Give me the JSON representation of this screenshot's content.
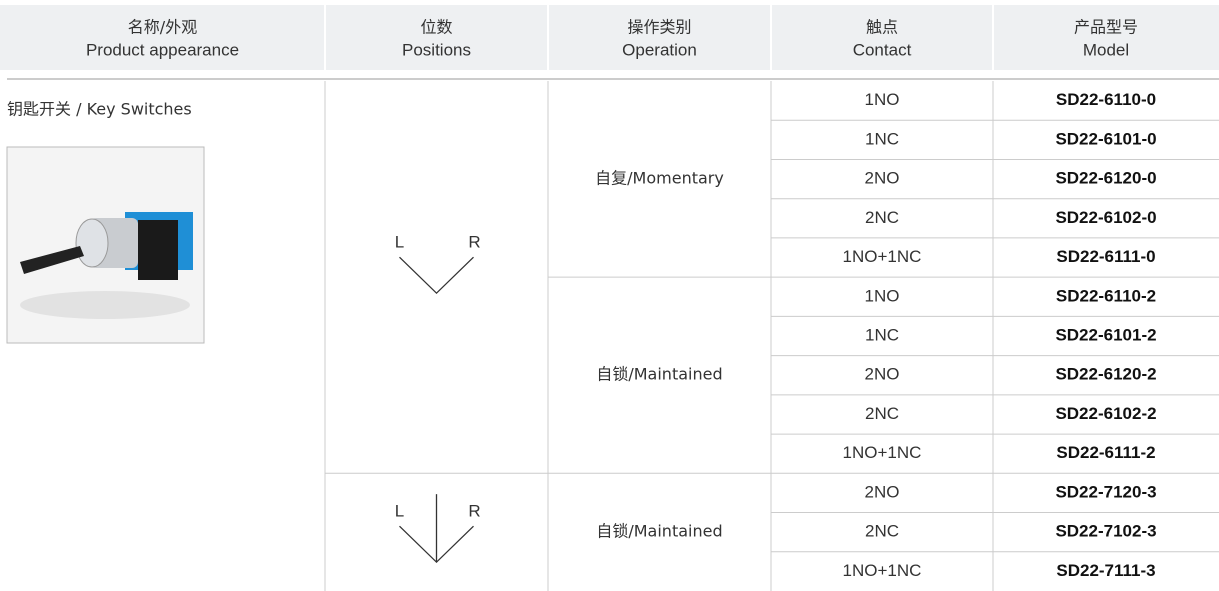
{
  "header": [
    {
      "zh": "名称/外观",
      "en": "Product appearance"
    },
    {
      "zh": "位数",
      "en": "Positions"
    },
    {
      "zh": "操作类别",
      "en": "Operation"
    },
    {
      "zh": "触点",
      "en": "Contact"
    },
    {
      "zh": "产品型号",
      "en": "Model"
    }
  ],
  "product": {
    "name": "钥匙开关 / Key Switches"
  },
  "groups": [
    {
      "position": {
        "left": "L",
        "right": "R"
      },
      "operations": [
        {
          "name": "自复/Momentary",
          "rows": [
            {
              "contact": "1NO",
              "model": "SD22-6110-0"
            },
            {
              "contact": "1NC",
              "model": "SD22-6101-0"
            },
            {
              "contact": "2NO",
              "model": "SD22-6120-0"
            },
            {
              "contact": "2NC",
              "model": "SD22-6102-0"
            },
            {
              "contact": "1NO+1NC",
              "model": "SD22-6111-0"
            }
          ]
        },
        {
          "name": "自锁/Maintained",
          "rows": [
            {
              "contact": "1NO",
              "model": "SD22-6110-2"
            },
            {
              "contact": "1NC",
              "model": "SD22-6101-2"
            },
            {
              "contact": "2NO",
              "model": "SD22-6120-2"
            },
            {
              "contact": "2NC",
              "model": "SD22-6102-2"
            },
            {
              "contact": "1NO+1NC",
              "model": "SD22-6111-2"
            }
          ]
        }
      ]
    },
    {
      "position": {
        "left": "L",
        "right": "R"
      },
      "operations": [
        {
          "name": "自锁/Maintained",
          "rows": [
            {
              "contact": "2NO",
              "model": "SD22-7120-3"
            },
            {
              "contact": "2NC",
              "model": "SD22-7102-3"
            },
            {
              "contact": "1NO+1NC",
              "model": "SD22-7111-3"
            }
          ]
        }
      ]
    }
  ]
}
